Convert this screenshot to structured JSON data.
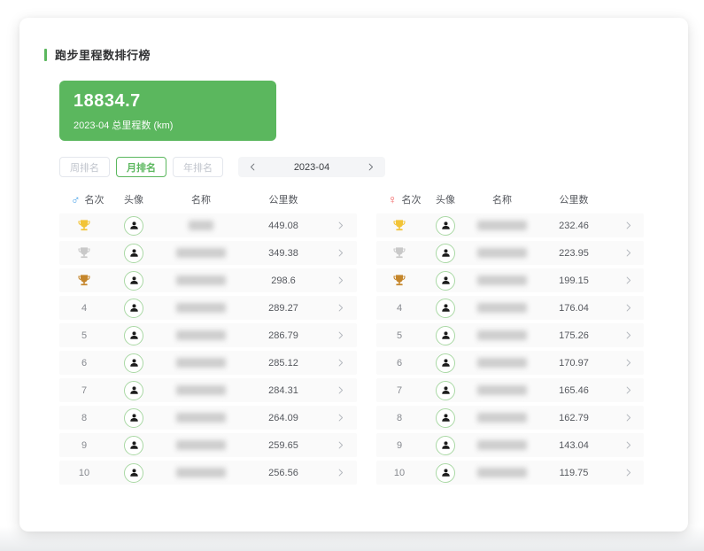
{
  "page": {
    "title": "跑步里程数排行榜"
  },
  "summary": {
    "value": "18834.7",
    "label": "2023-04 总里程数 (km)"
  },
  "tabs": [
    {
      "label": "周排名",
      "active": false
    },
    {
      "label": "月排名",
      "active": true
    },
    {
      "label": "年排名",
      "active": false
    }
  ],
  "date_nav": {
    "value": "2023-04"
  },
  "colors": {
    "accent_green": "#5bb75e",
    "male": "#4aa3e8",
    "female": "#f25d5d",
    "medals": {
      "gold": "#f2c437",
      "silver": "#c9c9c9",
      "bronze": "#c5862b"
    }
  },
  "tables": [
    {
      "gender": "male",
      "symbol": "♂",
      "headers": {
        "rank": "名次",
        "avatar": "头像",
        "name": "名称",
        "distance": "公里数"
      },
      "rows": [
        {
          "rank": 1,
          "medal": "gold",
          "distance": "449.08",
          "name_len": 2
        },
        {
          "rank": 2,
          "medal": "silver",
          "distance": "349.38",
          "name_len": 4
        },
        {
          "rank": 3,
          "medal": "bronze",
          "distance": "298.6",
          "name_len": 4
        },
        {
          "rank": 4,
          "medal": null,
          "distance": "289.27",
          "name_len": 4
        },
        {
          "rank": 5,
          "medal": null,
          "distance": "286.79",
          "name_len": 4
        },
        {
          "rank": 6,
          "medal": null,
          "distance": "285.12",
          "name_len": 4
        },
        {
          "rank": 7,
          "medal": null,
          "distance": "284.31",
          "name_len": 4
        },
        {
          "rank": 8,
          "medal": null,
          "distance": "264.09",
          "name_len": 4
        },
        {
          "rank": 9,
          "medal": null,
          "distance": "259.65",
          "name_len": 4
        },
        {
          "rank": 10,
          "medal": null,
          "distance": "256.56",
          "name_len": 4
        }
      ]
    },
    {
      "gender": "female",
      "symbol": "♀",
      "headers": {
        "rank": "名次",
        "avatar": "头像",
        "name": "名称",
        "distance": "公里数"
      },
      "rows": [
        {
          "rank": 1,
          "medal": "gold",
          "distance": "232.46",
          "name_len": 4
        },
        {
          "rank": 2,
          "medal": "silver",
          "distance": "223.95",
          "name_len": 4
        },
        {
          "rank": 3,
          "medal": "bronze",
          "distance": "199.15",
          "name_len": 4
        },
        {
          "rank": 4,
          "medal": null,
          "distance": "176.04",
          "name_len": 4
        },
        {
          "rank": 5,
          "medal": null,
          "distance": "175.26",
          "name_len": 4
        },
        {
          "rank": 6,
          "medal": null,
          "distance": "170.97",
          "name_len": 4
        },
        {
          "rank": 7,
          "medal": null,
          "distance": "165.46",
          "name_len": 4
        },
        {
          "rank": 8,
          "medal": null,
          "distance": "162.79",
          "name_len": 4
        },
        {
          "rank": 9,
          "medal": null,
          "distance": "143.04",
          "name_len": 4
        },
        {
          "rank": 10,
          "medal": null,
          "distance": "119.75",
          "name_len": 4
        }
      ]
    }
  ]
}
